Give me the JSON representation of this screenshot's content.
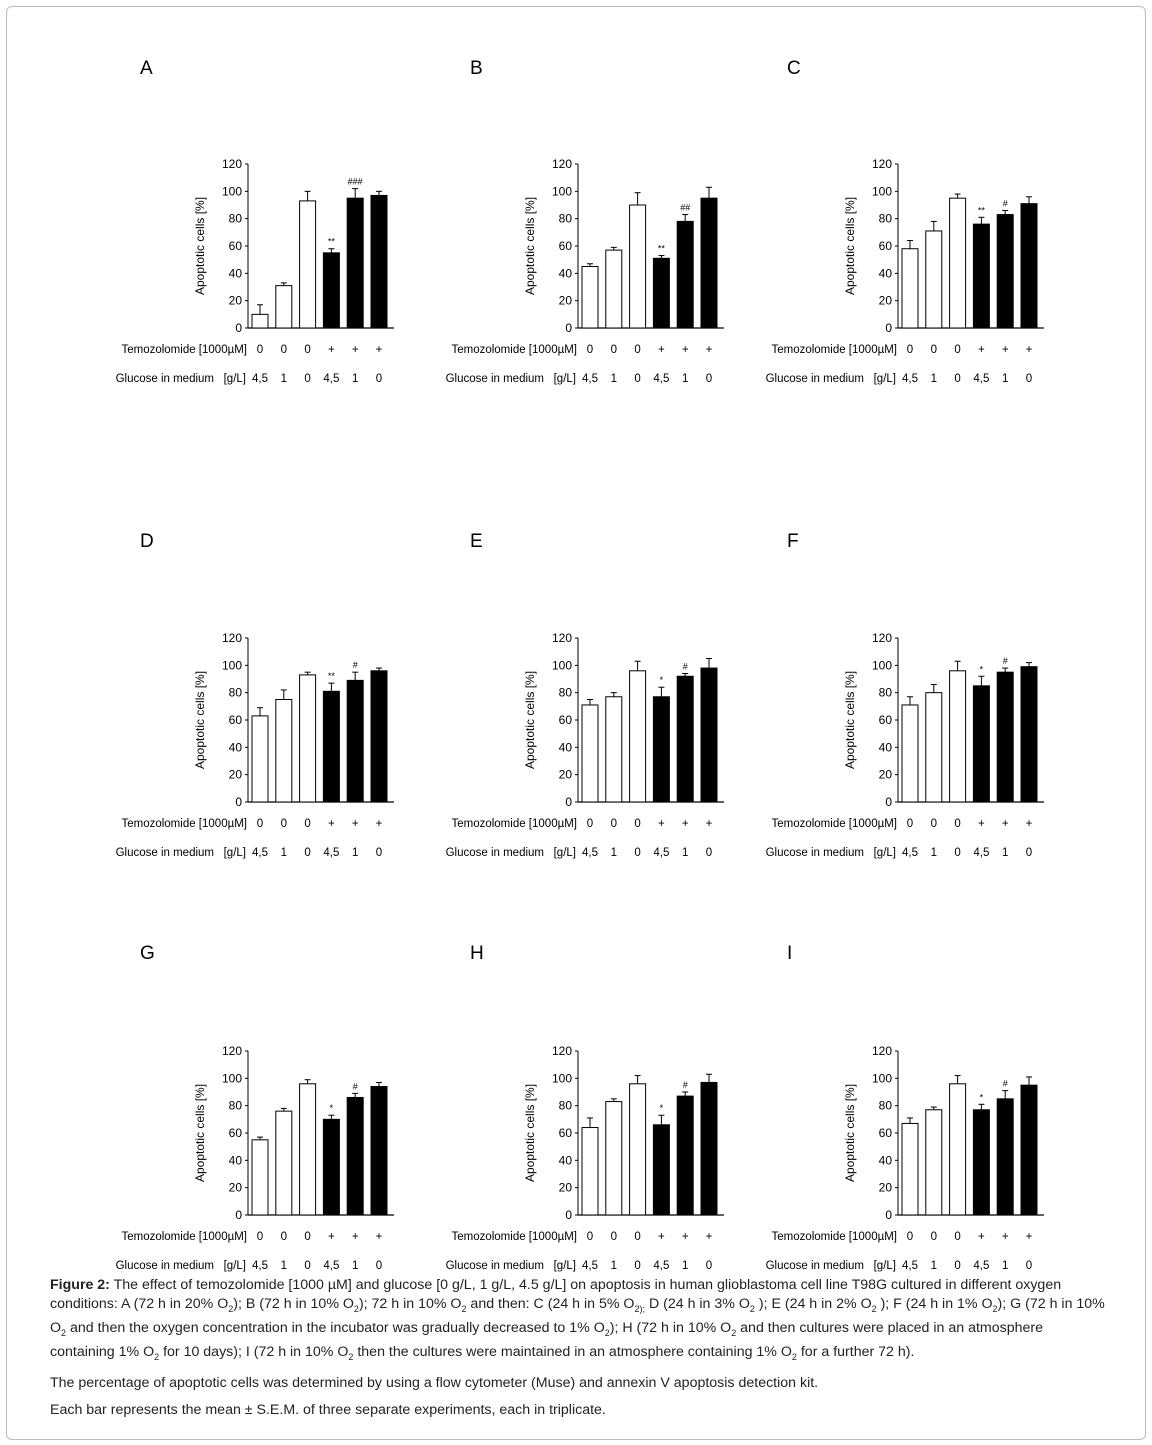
{
  "chart_data": [
    {
      "type": "bar",
      "panel": "A",
      "ylabel": "Apoptotic cells [%]",
      "ylim": [
        0,
        120
      ],
      "yticks": [
        0,
        20,
        40,
        60,
        80,
        100,
        120
      ],
      "values": [
        10,
        31,
        93,
        55,
        95,
        97
      ],
      "errors": [
        7,
        2,
        7,
        3,
        7,
        3
      ],
      "annotations": [
        "",
        "",
        "",
        "**",
        "###",
        ""
      ],
      "filled": [
        false,
        false,
        false,
        true,
        true,
        true
      ]
    },
    {
      "type": "bar",
      "panel": "B",
      "ylabel": "Apoptotic cells [%]",
      "ylim": [
        0,
        120
      ],
      "yticks": [
        0,
        20,
        40,
        60,
        80,
        100,
        120
      ],
      "values": [
        45,
        57,
        90,
        51,
        78,
        95
      ],
      "errors": [
        2,
        2,
        9,
        2,
        5,
        8
      ],
      "annotations": [
        "",
        "",
        "",
        "**",
        "##",
        ""
      ],
      "filled": [
        false,
        false,
        false,
        true,
        true,
        true
      ]
    },
    {
      "type": "bar",
      "panel": "C",
      "ylabel": "Apoptotic cells [%]",
      "ylim": [
        0,
        120
      ],
      "yticks": [
        0,
        20,
        40,
        60,
        80,
        100,
        120
      ],
      "values": [
        58,
        71,
        95,
        76,
        83,
        91
      ],
      "errors": [
        6,
        7,
        3,
        5,
        3,
        5
      ],
      "annotations": [
        "",
        "",
        "",
        "**",
        "#",
        ""
      ],
      "filled": [
        false,
        false,
        false,
        true,
        true,
        true
      ]
    },
    {
      "type": "bar",
      "panel": "D",
      "ylabel": "Apoptotic cells [%]",
      "ylim": [
        0,
        120
      ],
      "yticks": [
        0,
        20,
        40,
        60,
        80,
        100,
        120
      ],
      "values": [
        63,
        75,
        93,
        81,
        89,
        96
      ],
      "errors": [
        6,
        7,
        2,
        6,
        6,
        2
      ],
      "annotations": [
        "",
        "",
        "",
        "**",
        "#",
        ""
      ],
      "filled": [
        false,
        false,
        false,
        true,
        true,
        true
      ]
    },
    {
      "type": "bar",
      "panel": "E",
      "ylabel": "Apoptotic cells [%]",
      "ylim": [
        0,
        120
      ],
      "yticks": [
        0,
        20,
        40,
        60,
        80,
        100,
        120
      ],
      "values": [
        71,
        77,
        96,
        77,
        92,
        98
      ],
      "errors": [
        4,
        3,
        7,
        7,
        2,
        7
      ],
      "annotations": [
        "",
        "",
        "",
        "*",
        "#",
        ""
      ],
      "filled": [
        false,
        false,
        false,
        true,
        true,
        true
      ]
    },
    {
      "type": "bar",
      "panel": "F",
      "ylabel": "Apoptotic cells [%]",
      "ylim": [
        0,
        120
      ],
      "yticks": [
        0,
        20,
        40,
        60,
        80,
        100,
        120
      ],
      "values": [
        71,
        80,
        96,
        85,
        95,
        99
      ],
      "errors": [
        6,
        6,
        7,
        7,
        3,
        3
      ],
      "annotations": [
        "",
        "",
        "",
        "*",
        "#",
        ""
      ],
      "filled": [
        false,
        false,
        false,
        true,
        true,
        true
      ]
    },
    {
      "type": "bar",
      "panel": "G",
      "ylabel": "Apoptotic cells [%]",
      "ylim": [
        0,
        120
      ],
      "yticks": [
        0,
        20,
        40,
        60,
        80,
        100,
        120
      ],
      "values": [
        55,
        76,
        96,
        70,
        86,
        94
      ],
      "errors": [
        2,
        2,
        3,
        3,
        3,
        3
      ],
      "annotations": [
        "",
        "",
        "",
        "*",
        "#",
        ""
      ],
      "filled": [
        false,
        false,
        false,
        true,
        true,
        true
      ]
    },
    {
      "type": "bar",
      "panel": "H",
      "ylabel": "Apoptotic cells [%]",
      "ylim": [
        0,
        120
      ],
      "yticks": [
        0,
        20,
        40,
        60,
        80,
        100,
        120
      ],
      "values": [
        64,
        83,
        96,
        66,
        87,
        97
      ],
      "errors": [
        7,
        2,
        6,
        7,
        3,
        6
      ],
      "annotations": [
        "",
        "",
        "",
        "*",
        "#",
        ""
      ],
      "filled": [
        false,
        false,
        false,
        true,
        true,
        true
      ]
    },
    {
      "type": "bar",
      "panel": "I",
      "ylabel": "Apoptotic cells [%]",
      "ylim": [
        0,
        120
      ],
      "yticks": [
        0,
        20,
        40,
        60,
        80,
        100,
        120
      ],
      "values": [
        67,
        77,
        96,
        77,
        85,
        95
      ],
      "errors": [
        4,
        2,
        6,
        4,
        6,
        6
      ],
      "annotations": [
        "",
        "",
        "",
        "*",
        "#",
        ""
      ],
      "filled": [
        false,
        false,
        false,
        true,
        true,
        true
      ]
    }
  ],
  "categories": {
    "temozolomide_label": "Temozolomide [1000µM]",
    "temozolomide": [
      "0",
      "0",
      "0",
      "+",
      "+",
      "+"
    ],
    "glucose_label": "Glucose in medium",
    "glucose_unit": "[g/L]",
    "glucose": [
      "4,5",
      "1",
      "0",
      "4,5",
      "1",
      "0"
    ]
  },
  "colors": {
    "filled_bar": "#000000",
    "open_bar": "#ffffff",
    "border": "#bbbbbb"
  },
  "caption": [
    [
      {
        "t": "Figure 2:",
        "b": true
      },
      {
        "t": " The effect of temozolomide [1000 µM] and glucose [0 g/L, 1 g/L, 4.5 g/L] on apoptosis in human glioblastoma cell line T98G cultured in different oxygen conditions: A (72 h in 20% O"
      },
      {
        "t": "2",
        "sub": true
      },
      {
        "t": "); B (72 h in 10% O"
      },
      {
        "t": "2",
        "sub": true
      },
      {
        "t": "); 72 h in 10% O"
      },
      {
        "t": "2",
        "sub": true
      },
      {
        "t": " and then: C (24 h in 5% O"
      },
      {
        "t": "2);",
        "sub": true
      },
      {
        "t": " D (24 h in 3% O"
      },
      {
        "t": "2",
        "sub": true
      },
      {
        "t": " ); E (24 h in 2% O"
      },
      {
        "t": "2",
        "sub": true
      },
      {
        "t": " ); F (24 h in 1% O"
      },
      {
        "t": "2",
        "sub": true
      },
      {
        "t": "); G (72 h in 10% O"
      },
      {
        "t": "2",
        "sub": true
      },
      {
        "t": " and then the oxygen concentration in the incubator was gradually decreased to 1% O"
      },
      {
        "t": "2",
        "sub": true
      },
      {
        "t": "); H (72 h in 10% O"
      },
      {
        "t": "2",
        "sub": true
      },
      {
        "t": " and then cultures were placed in an atmosphere containing 1% O"
      },
      {
        "t": "2",
        "sub": true
      },
      {
        "t": " for 10 days); I (72 h in 10% O"
      },
      {
        "t": "2",
        "sub": true
      },
      {
        "t": " then the cultures were maintained in an atmosphere containing 1% O"
      },
      {
        "t": "2",
        "sub": true
      },
      {
        "t": " for a further 72 h)."
      }
    ],
    [
      {
        "t": "The percentage of apoptotic cells was determined by using a flow cytometer (Muse) and annexin V apoptosis detection kit."
      }
    ],
    [
      {
        "t": "Each bar represents the mean ± S.E.M. of three separate experiments, each in triplicate."
      }
    ]
  ]
}
